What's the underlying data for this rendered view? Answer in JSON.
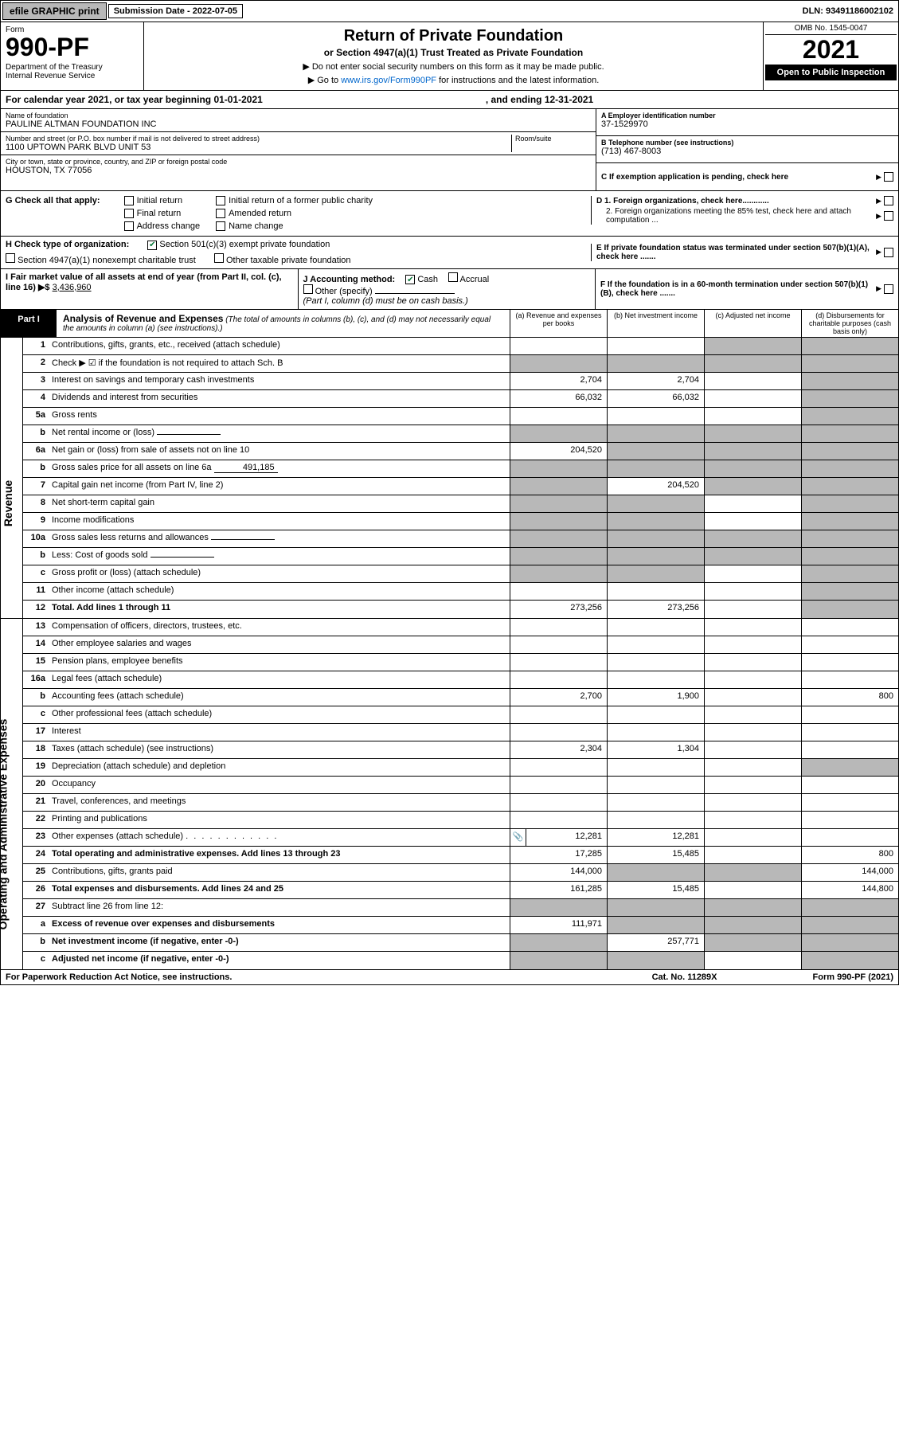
{
  "topbar": {
    "efile": "efile GRAPHIC print",
    "submission_label": "Submission Date - 2022-07-05",
    "dln": "DLN: 93491186002102"
  },
  "header": {
    "form_label": "Form",
    "form_number": "990-PF",
    "dept": "Department of the Treasury\nInternal Revenue Service",
    "title": "Return of Private Foundation",
    "subtitle": "or Section 4947(a)(1) Trust Treated as Private Foundation",
    "note1": "▶ Do not enter social security numbers on this form as it may be made public.",
    "note2": "▶ Go to www.irs.gov/Form990PF for instructions and the latest information.",
    "omb": "OMB No. 1545-0047",
    "year": "2021",
    "open": "Open to Public Inspection"
  },
  "calyear": {
    "begin": "For calendar year 2021, or tax year beginning 01-01-2021",
    "end": ", and ending 12-31-2021"
  },
  "info": {
    "name_lbl": "Name of foundation",
    "name": "PAULINE ALTMAN FOUNDATION INC",
    "addr_lbl": "Number and street (or P.O. box number if mail is not delivered to street address)",
    "addr": "1100 UPTOWN PARK BLVD UNIT 53",
    "room_lbl": "Room/suite",
    "city_lbl": "City or town, state or province, country, and ZIP or foreign postal code",
    "city": "HOUSTON, TX  77056",
    "ein_lbl": "A Employer identification number",
    "ein": "37-1529970",
    "phone_lbl": "B Telephone number (see instructions)",
    "phone": "(713) 467-8003",
    "c_lbl": "C If exemption application is pending, check here",
    "d1": "D 1. Foreign organizations, check here............",
    "d2": "2. Foreign organizations meeting the 85% test, check here and attach computation ...",
    "e_lbl": "E If private foundation status was terminated under section 507(b)(1)(A), check here .......",
    "f_lbl": "F If the foundation is in a 60-month termination under section 507(b)(1)(B), check here ......."
  },
  "g": {
    "label": "G Check all that apply:",
    "opts": [
      "Initial return",
      "Final return",
      "Address change",
      "Initial return of a former public charity",
      "Amended return",
      "Name change"
    ]
  },
  "h": {
    "label": "H Check type of organization:",
    "opt1": "Section 501(c)(3) exempt private foundation",
    "opt2": "Section 4947(a)(1) nonexempt charitable trust",
    "opt3": "Other taxable private foundation"
  },
  "i": {
    "label": "I Fair market value of all assets at end of year (from Part II, col. (c), line 16) ▶$",
    "value": "3,436,960"
  },
  "j": {
    "label": "J Accounting method:",
    "cash": "Cash",
    "accrual": "Accrual",
    "other": "Other (specify)",
    "note": "(Part I, column (d) must be on cash basis.)"
  },
  "part1": {
    "label": "Part I",
    "title": "Analysis of Revenue and Expenses",
    "note": "(The total of amounts in columns (b), (c), and (d) may not necessarily equal the amounts in column (a) (see instructions).)",
    "cols": {
      "a": "(a) Revenue and expenses per books",
      "b": "(b) Net investment income",
      "c": "(c) Adjusted net income",
      "d": "(d) Disbursements for charitable purposes (cash basis only)"
    }
  },
  "side_labels": {
    "revenue": "Revenue",
    "expenses": "Operating and Administrative Expenses"
  },
  "rows": [
    {
      "n": "1",
      "d": "Contributions, gifts, grants, etc., received (attach schedule)",
      "a": "",
      "b": "",
      "c": "s",
      "dd": "s"
    },
    {
      "n": "2",
      "d": "Check ▶ ☑ if the foundation is not required to attach Sch. B",
      "a": "s",
      "b": "s",
      "c": "s",
      "dd": "s",
      "nob": true
    },
    {
      "n": "3",
      "d": "Interest on savings and temporary cash investments",
      "a": "2,704",
      "b": "2,704",
      "c": "",
      "dd": "s"
    },
    {
      "n": "4",
      "d": "Dividends and interest from securities",
      "a": "66,032",
      "b": "66,032",
      "c": "",
      "dd": "s"
    },
    {
      "n": "5a",
      "d": "Gross rents",
      "a": "",
      "b": "",
      "c": "",
      "dd": "s"
    },
    {
      "n": "b",
      "d": "Net rental income or (loss)",
      "a": "s",
      "b": "s",
      "c": "s",
      "dd": "s",
      "inline": true
    },
    {
      "n": "6a",
      "d": "Net gain or (loss) from sale of assets not on line 10",
      "a": "204,520",
      "b": "s",
      "c": "s",
      "dd": "s"
    },
    {
      "n": "b",
      "d": "Gross sales price for all assets on line 6a",
      "a": "s",
      "b": "s",
      "c": "s",
      "dd": "s",
      "inline": true,
      "inline_val": "491,185"
    },
    {
      "n": "7",
      "d": "Capital gain net income (from Part IV, line 2)",
      "a": "s",
      "b": "204,520",
      "c": "s",
      "dd": "s"
    },
    {
      "n": "8",
      "d": "Net short-term capital gain",
      "a": "s",
      "b": "s",
      "c": "",
      "dd": "s"
    },
    {
      "n": "9",
      "d": "Income modifications",
      "a": "s",
      "b": "s",
      "c": "",
      "dd": "s"
    },
    {
      "n": "10a",
      "d": "Gross sales less returns and allowances",
      "a": "s",
      "b": "s",
      "c": "s",
      "dd": "s",
      "inline": true
    },
    {
      "n": "b",
      "d": "Less: Cost of goods sold",
      "a": "s",
      "b": "s",
      "c": "s",
      "dd": "s",
      "inline": true
    },
    {
      "n": "c",
      "d": "Gross profit or (loss) (attach schedule)",
      "a": "s",
      "b": "s",
      "c": "",
      "dd": "s"
    },
    {
      "n": "11",
      "d": "Other income (attach schedule)",
      "a": "",
      "b": "",
      "c": "",
      "dd": "s"
    },
    {
      "n": "12",
      "d": "Total. Add lines 1 through 11",
      "a": "273,256",
      "b": "273,256",
      "c": "",
      "dd": "s",
      "bold": true
    }
  ],
  "exp_rows": [
    {
      "n": "13",
      "d": "Compensation of officers, directors, trustees, etc.",
      "a": "",
      "b": "",
      "c": "",
      "dd": ""
    },
    {
      "n": "14",
      "d": "Other employee salaries and wages",
      "a": "",
      "b": "",
      "c": "",
      "dd": ""
    },
    {
      "n": "15",
      "d": "Pension plans, employee benefits",
      "a": "",
      "b": "",
      "c": "",
      "dd": ""
    },
    {
      "n": "16a",
      "d": "Legal fees (attach schedule)",
      "a": "",
      "b": "",
      "c": "",
      "dd": ""
    },
    {
      "n": "b",
      "d": "Accounting fees (attach schedule)",
      "a": "2,700",
      "b": "1,900",
      "c": "",
      "dd": "800"
    },
    {
      "n": "c",
      "d": "Other professional fees (attach schedule)",
      "a": "",
      "b": "",
      "c": "",
      "dd": ""
    },
    {
      "n": "17",
      "d": "Interest",
      "a": "",
      "b": "",
      "c": "",
      "dd": ""
    },
    {
      "n": "18",
      "d": "Taxes (attach schedule) (see instructions)",
      "a": "2,304",
      "b": "1,304",
      "c": "",
      "dd": ""
    },
    {
      "n": "19",
      "d": "Depreciation (attach schedule) and depletion",
      "a": "",
      "b": "",
      "c": "",
      "dd": "s"
    },
    {
      "n": "20",
      "d": "Occupancy",
      "a": "",
      "b": "",
      "c": "",
      "dd": ""
    },
    {
      "n": "21",
      "d": "Travel, conferences, and meetings",
      "a": "",
      "b": "",
      "c": "",
      "dd": ""
    },
    {
      "n": "22",
      "d": "Printing and publications",
      "a": "",
      "b": "",
      "c": "",
      "dd": ""
    },
    {
      "n": "23",
      "d": "Other expenses (attach schedule)",
      "a": "12,281",
      "b": "12,281",
      "c": "",
      "dd": "",
      "icon": true
    },
    {
      "n": "24",
      "d": "Total operating and administrative expenses. Add lines 13 through 23",
      "a": "17,285",
      "b": "15,485",
      "c": "",
      "dd": "800",
      "bold": true
    },
    {
      "n": "25",
      "d": "Contributions, gifts, grants paid",
      "a": "144,000",
      "b": "s",
      "c": "s",
      "dd": "144,000"
    },
    {
      "n": "26",
      "d": "Total expenses and disbursements. Add lines 24 and 25",
      "a": "161,285",
      "b": "15,485",
      "c": "",
      "dd": "144,800",
      "bold": true
    },
    {
      "n": "27",
      "d": "Subtract line 26 from line 12:",
      "a": "s",
      "b": "s",
      "c": "s",
      "dd": "s"
    },
    {
      "n": "a",
      "d": "Excess of revenue over expenses and disbursements",
      "a": "111,971",
      "b": "s",
      "c": "s",
      "dd": "s",
      "bold": true
    },
    {
      "n": "b",
      "d": "Net investment income (if negative, enter -0-)",
      "a": "s",
      "b": "257,771",
      "c": "s",
      "dd": "s",
      "bold": true
    },
    {
      "n": "c",
      "d": "Adjusted net income (if negative, enter -0-)",
      "a": "s",
      "b": "s",
      "c": "",
      "dd": "s",
      "bold": true
    }
  ],
  "footer": {
    "left": "For Paperwork Reduction Act Notice, see instructions.",
    "mid": "Cat. No. 11289X",
    "right": "Form 990-PF (2021)"
  },
  "colors": {
    "shaded": "#b8b8b8",
    "link": "#0066cc",
    "check": "#0a7a3a"
  }
}
